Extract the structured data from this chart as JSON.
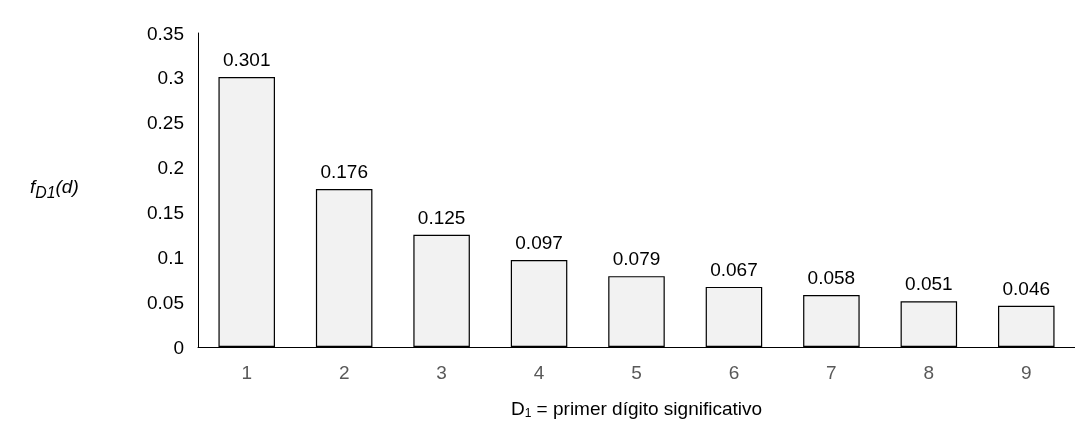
{
  "chart_data": {
    "type": "bar",
    "xlabel": "D$_{1}$ = primer dígito significativo",
    "ylabel": "f$_{D1}$(d)",
    "categories": [
      "1",
      "2",
      "3",
      "4",
      "5",
      "6",
      "7",
      "8",
      "9"
    ],
    "values": [
      0.301,
      0.176,
      0.125,
      0.097,
      0.079,
      0.067,
      0.058,
      0.051,
      0.046
    ],
    "color": "#f2f2f2",
    "ylim": [
      0,
      0.35
    ],
    "yticks": [
      0,
      0.05,
      0.1,
      0.15,
      0.2,
      0.25,
      0.3,
      0.35
    ],
    "grid": false,
    "data_labels": true
  }
}
